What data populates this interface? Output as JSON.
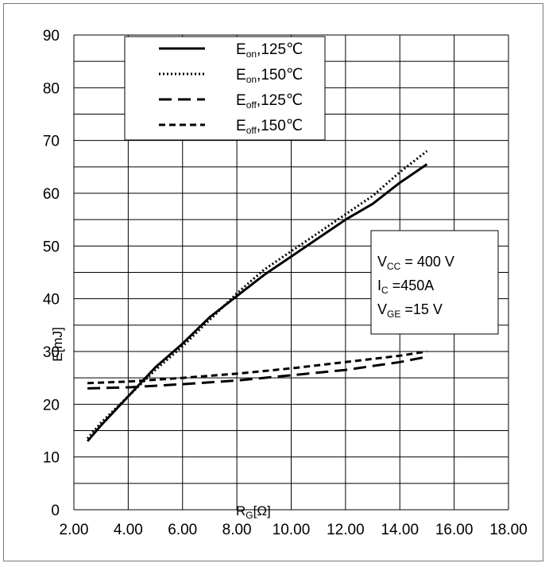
{
  "chart_data": {
    "type": "line",
    "title": "",
    "xlabel": {
      "main": "R",
      "sub": "G",
      "rest": "[Ω]"
    },
    "ylabel": "E[mJ]",
    "xlim": [
      2.0,
      18.0
    ],
    "ylim": [
      0,
      90
    ],
    "x_ticks": [
      2.0,
      4.0,
      6.0,
      8.0,
      10.0,
      12.0,
      14.0,
      16.0,
      18.0
    ],
    "x_tick_labels": [
      "2.00",
      "4.00",
      "6.00",
      "8.00",
      "10.00",
      "12.00",
      "14.00",
      "16.00",
      "18.00"
    ],
    "y_ticks": [
      0,
      10,
      20,
      30,
      40,
      50,
      60,
      70,
      80,
      90
    ],
    "y_tick_labels": [
      "0",
      "10",
      "20",
      "30",
      "40",
      "50",
      "60",
      "70",
      "80",
      "90"
    ],
    "grid": {
      "x_step": 2.0,
      "y_step": 5
    },
    "legend_position": "top-center",
    "series": [
      {
        "name": "E_on,125°C",
        "label_main": "E",
        "label_sub": "on",
        "label_rest": ",125℃",
        "style": "solid",
        "x": [
          2.5,
          3.0,
          4.0,
          5.0,
          6.0,
          7.0,
          8.0,
          9.0,
          10.0,
          11.0,
          12.0,
          13.0,
          14.0,
          15.0
        ],
        "y": [
          13.0,
          16.0,
          21.5,
          27.0,
          31.5,
          36.5,
          40.5,
          44.5,
          48.0,
          51.5,
          55.0,
          58.0,
          62.0,
          65.5
        ]
      },
      {
        "name": "E_on,150°C",
        "label_main": "E",
        "label_sub": "on",
        "label_rest": ",150℃",
        "style": "dotted",
        "x": [
          2.5,
          3.0,
          4.0,
          5.0,
          6.0,
          7.0,
          8.0,
          9.0,
          10.0,
          11.0,
          12.0,
          13.0,
          14.0,
          15.0
        ],
        "y": [
          13.5,
          16.5,
          21.5,
          26.5,
          31.0,
          36.0,
          41.0,
          45.5,
          49.0,
          52.5,
          56.0,
          59.5,
          64.0,
          68.0
        ]
      },
      {
        "name": "E_off,125°C",
        "label_main": "E",
        "label_sub": "off",
        "label_rest": ",125℃",
        "style": "long-dash",
        "x": [
          2.5,
          4.0,
          6.0,
          8.0,
          10.0,
          12.0,
          14.0,
          15.0
        ],
        "y": [
          23.0,
          23.2,
          23.8,
          24.5,
          25.5,
          26.5,
          28.0,
          29.0
        ]
      },
      {
        "name": "E_off,150°C",
        "label_main": "E",
        "label_sub": "off",
        "label_rest": ",150℃",
        "style": "short-dash",
        "x": [
          2.5,
          4.0,
          6.0,
          8.0,
          10.0,
          12.0,
          14.0,
          15.0
        ],
        "y": [
          24.0,
          24.3,
          25.0,
          25.8,
          26.8,
          28.0,
          29.2,
          30.0
        ]
      }
    ],
    "conditions": [
      {
        "main": "V",
        "sub": "CC",
        "rest": " = 400 V"
      },
      {
        "main": "I",
        "sub": "C",
        "rest": " =450A"
      },
      {
        "main": "V",
        "sub": "GE",
        "rest": " =15 V"
      }
    ]
  }
}
